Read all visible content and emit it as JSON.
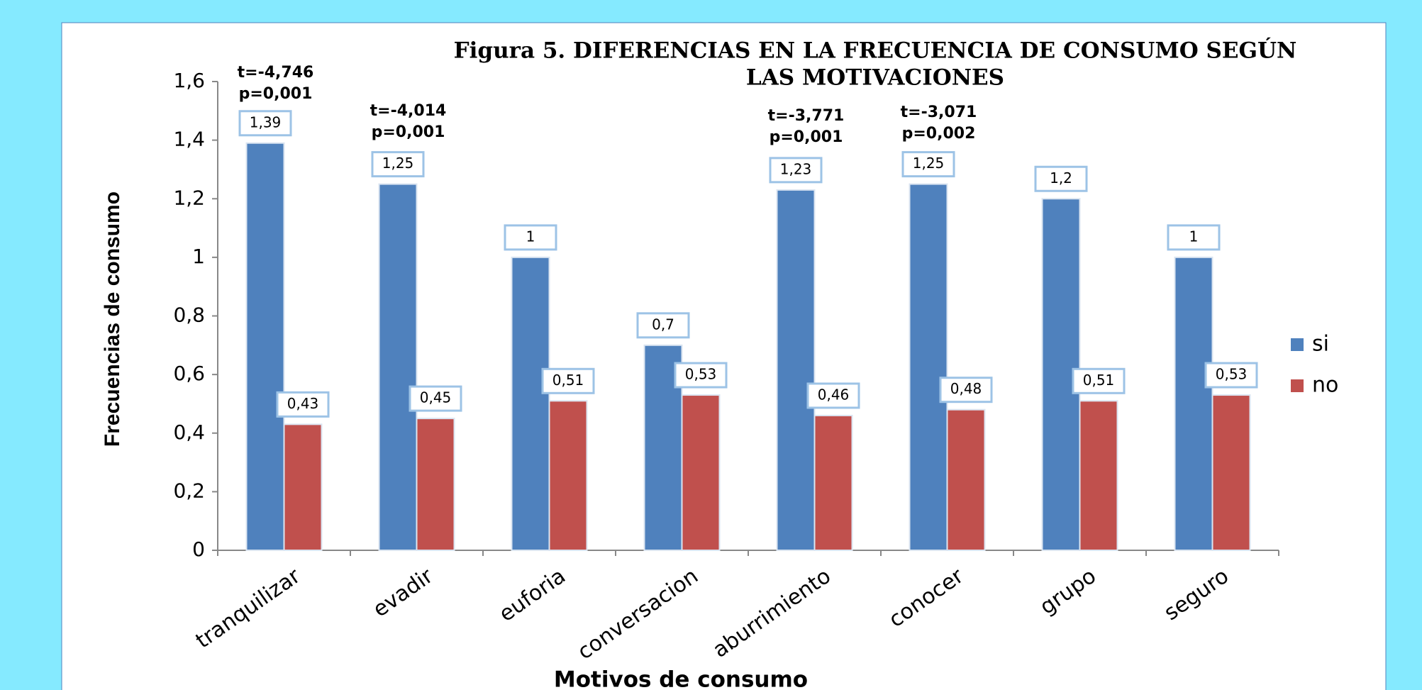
{
  "chart_data": {
    "type": "bar",
    "title": [
      "Figura 5. DIFERENCIAS EN LA FRECUENCIA DE CONSUMO SEGÚN",
      "LAS  MOTIVACIONES"
    ],
    "x_label": "Motivos de consumo",
    "y_label": "Frecuencias de consumo",
    "categories": [
      "tranquilizar",
      "evadir",
      "euforia",
      "conversacion",
      "aburrimiento",
      "conocer",
      "grupo",
      "seguro"
    ],
    "series": [
      {
        "name": "si",
        "color": "#4f81bd",
        "values": [
          1.39,
          1.25,
          1,
          0.7,
          1.23,
          1.25,
          1.2,
          1
        ],
        "value_labels": [
          "1,39",
          "1,25",
          "1",
          "0,7",
          "1,23",
          "1,25",
          "1,2",
          "1"
        ]
      },
      {
        "name": "no",
        "color": "#c0504d",
        "values": [
          0.43,
          0.45,
          0.51,
          0.53,
          0.46,
          0.48,
          0.51,
          0.53
        ],
        "value_labels": [
          "0,43",
          "0,45",
          "0,51",
          "0,53",
          "0,46",
          "0,48",
          "0,51",
          "0,53"
        ]
      }
    ],
    "annotations": [
      [
        "t=-4,746",
        "p=0,001"
      ],
      [
        "t=-4,014",
        "p=0,001"
      ],
      [
        "t=-3,771",
        "p=0,001"
      ],
      [
        "t=-3,071",
        "p=0,002"
      ]
    ],
    "ylim": [
      0,
      1.6
    ],
    "yticks": [
      0,
      {
        "value": 0.2,
        "label": "0,2"
      },
      {
        "value": 0.4,
        "label": "0,4"
      },
      {
        "value": 0.6,
        "label": "0,6"
      },
      {
        "value": 0.8,
        "label": "0,8"
      },
      1,
      {
        "value": 1.2,
        "label": "1,2"
      },
      {
        "value": 1.4,
        "label": "1,4"
      },
      {
        "value": 1.6,
        "label": "1,6"
      }
    ],
    "legend": "right"
  }
}
